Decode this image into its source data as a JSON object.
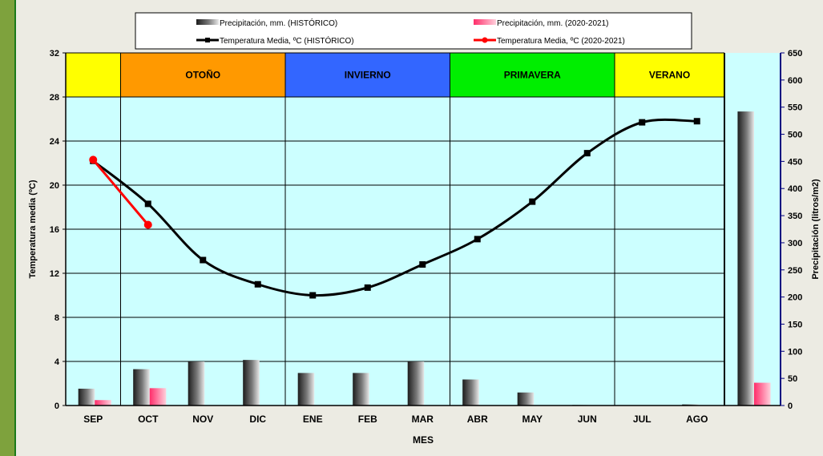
{
  "chart_data": {
    "type": "bar+line",
    "xlabel": "MES",
    "ylabel_left": "Temperatura media (ºC)",
    "ylabel_right": "Precipitación (litros/m2)",
    "ylim_left": [
      0,
      32
    ],
    "ylim_right": [
      0,
      650
    ],
    "left_ticks": [
      "0",
      "4",
      "8",
      "12",
      "16",
      "20",
      "24",
      "28",
      "32"
    ],
    "right_ticks": [
      "0",
      "50",
      "100",
      "150",
      "200",
      "250",
      "300",
      "350",
      "400",
      "450",
      "500",
      "550",
      "600",
      "650"
    ],
    "categories": [
      "SEP",
      "OCT",
      "NOV",
      "DIC",
      "ENE",
      "FEB",
      "MAR",
      "ABR",
      "MAY",
      "JUN",
      "JUL",
      "AGO"
    ],
    "seasons": [
      {
        "label": "",
        "color": "#ffff00",
        "from": 0,
        "to": 1
      },
      {
        "label": "OTOÑO",
        "color": "#ff9900",
        "from": 1,
        "to": 4
      },
      {
        "label": "INVIERNO",
        "color": "#3366ff",
        "from": 4,
        "to": 7
      },
      {
        "label": "PRIMAVERA",
        "color": "#00ee00",
        "from": 7,
        "to": 10
      },
      {
        "label": "VERANO",
        "color": "#ffff00",
        "from": 10,
        "to": 12
      }
    ],
    "series": [
      {
        "name": "Precipitación, mm. (HISTÓRICO)",
        "kind": "bar",
        "axis": "right",
        "color": "#555555",
        "values": [
          31,
          67,
          81,
          84,
          60,
          60,
          81,
          48,
          24,
          1,
          0,
          2
        ],
        "annual_total": 542
      },
      {
        "name": "Precipitación, mm. (2020-2021)",
        "kind": "bar",
        "axis": "right",
        "color": "#ff5c85",
        "values": [
          10,
          32,
          null,
          null,
          null,
          null,
          null,
          null,
          null,
          null,
          null,
          null
        ],
        "annual_total": 42
      },
      {
        "name": "Temperatura Media, ºC (HISTÓRICO)",
        "kind": "line",
        "axis": "left",
        "color": "#000000",
        "values": [
          22.2,
          18.3,
          13.2,
          11.0,
          10.0,
          10.7,
          12.8,
          15.1,
          18.5,
          22.9,
          25.7,
          25.8
        ]
      },
      {
        "name": "Temperatura Media, ºC (2020-2021)",
        "kind": "line",
        "axis": "left",
        "color": "#ff0000",
        "values": [
          22.3,
          16.4,
          null,
          null,
          null,
          null,
          null,
          null,
          null,
          null,
          null,
          null
        ]
      }
    ],
    "legend_position": "top-center",
    "grid": true
  }
}
